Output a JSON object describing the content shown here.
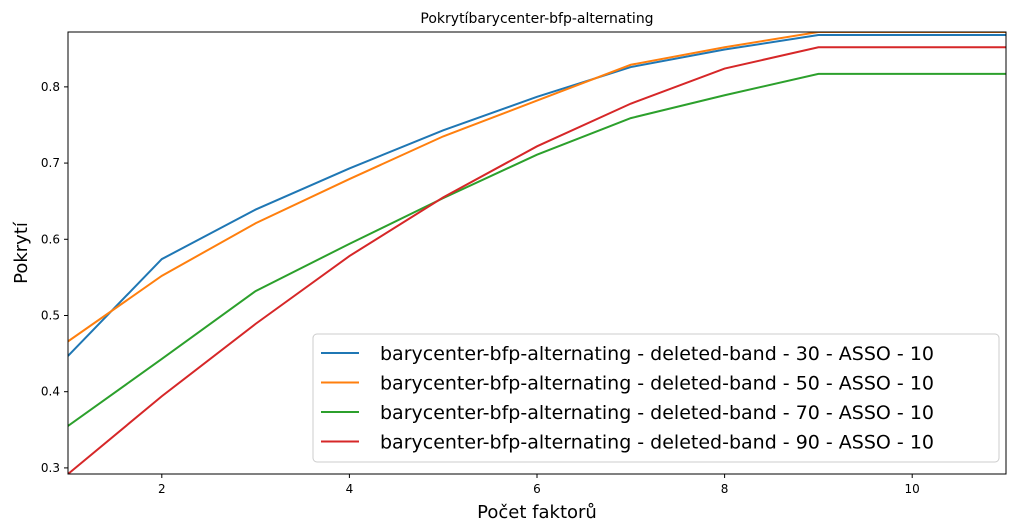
{
  "chart_data": {
    "type": "line",
    "title": "Pokrytíbarycenter-bfp-alternating",
    "xlabel": "Počet faktorů",
    "ylabel": "Pokrytí",
    "xlim": [
      1,
      11
    ],
    "ylim": [
      0.292,
      0.872
    ],
    "xticks": [
      2,
      4,
      6,
      8,
      10
    ],
    "yticks": [
      0.3,
      0.4,
      0.5,
      0.6,
      0.7,
      0.8
    ],
    "grid": false,
    "legend_position": "lower-right",
    "x": [
      1,
      2,
      3,
      4,
      5,
      6,
      7,
      8,
      9,
      10,
      11
    ],
    "series": [
      {
        "name": "barycenter-bfp-alternating - deleted-band - 30 - ASSO - 10",
        "color": "#1f77b4",
        "values": [
          0.447,
          0.574,
          0.639,
          0.693,
          0.743,
          0.787,
          0.826,
          0.849,
          0.868,
          0.868,
          0.868
        ]
      },
      {
        "name": "barycenter-bfp-alternating - deleted-band - 50 - ASSO - 10",
        "color": "#ff7f0e",
        "values": [
          0.466,
          0.552,
          0.621,
          0.679,
          0.735,
          0.782,
          0.829,
          0.852,
          0.872,
          0.872,
          0.872
        ]
      },
      {
        "name": "barycenter-bfp-alternating - deleted-band - 70 - ASSO - 10",
        "color": "#2ca02c",
        "values": [
          0.355,
          0.443,
          0.532,
          0.594,
          0.654,
          0.711,
          0.759,
          0.789,
          0.817,
          0.817,
          0.817
        ]
      },
      {
        "name": "barycenter-bfp-alternating - deleted-band - 90 - ASSO - 10",
        "color": "#d62728",
        "values": [
          0.292,
          0.394,
          0.489,
          0.578,
          0.655,
          0.722,
          0.778,
          0.824,
          0.852,
          0.852,
          0.852
        ]
      }
    ]
  }
}
